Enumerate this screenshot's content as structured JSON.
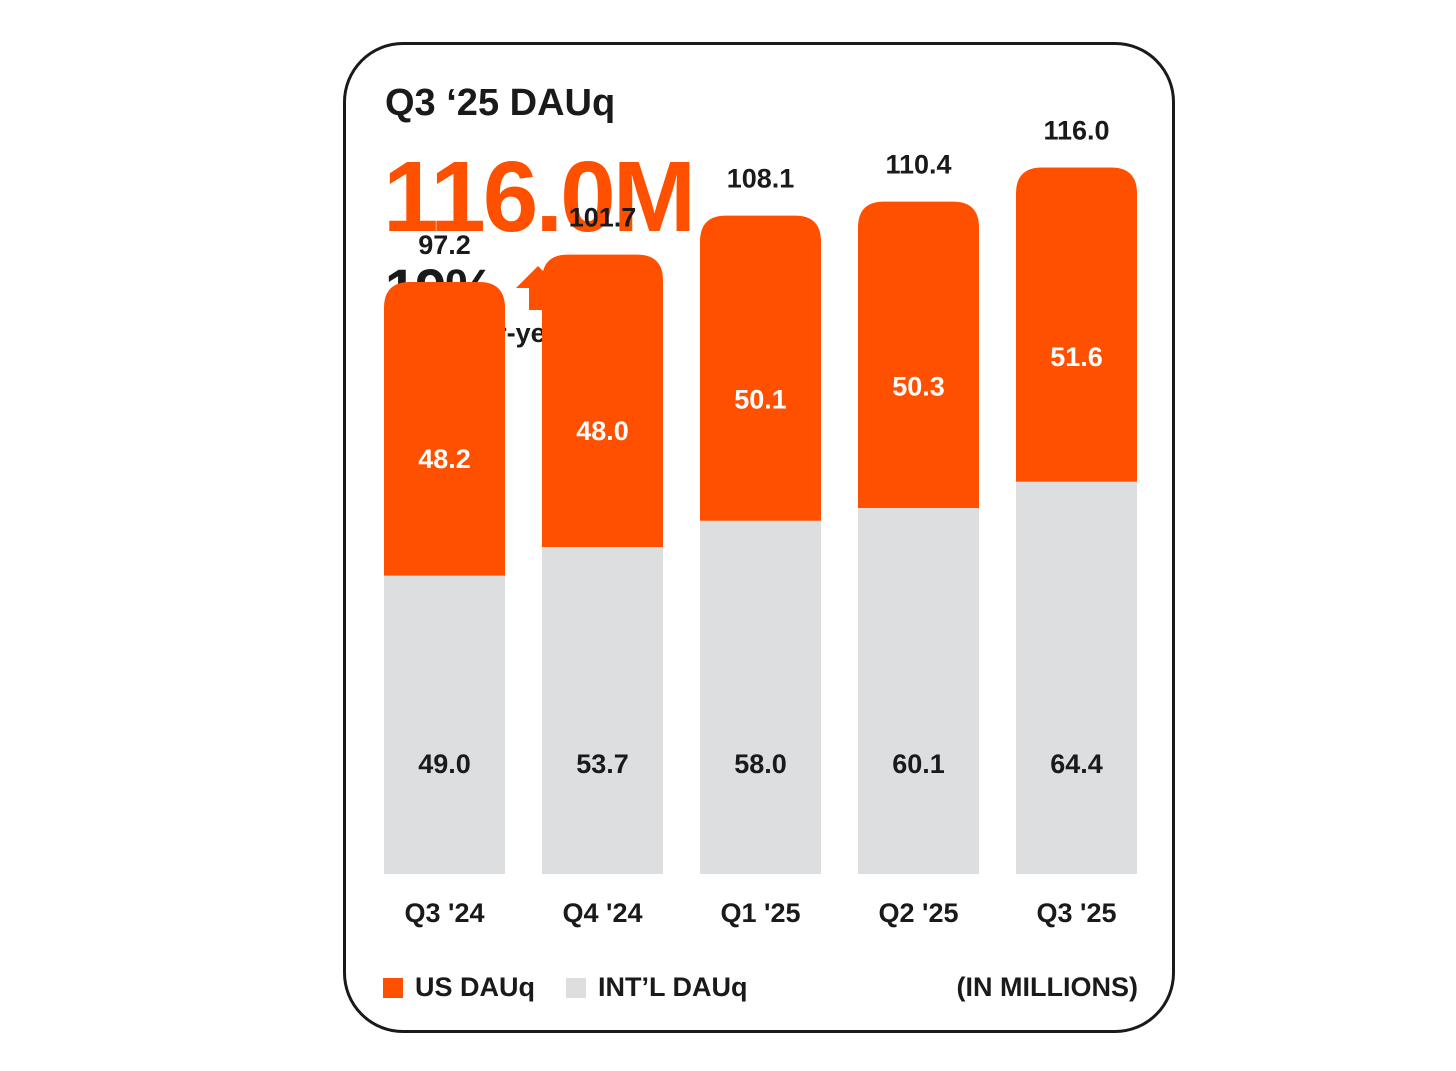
{
  "header": {
    "title": "Q3 ‘25 DAUq",
    "headline_value": "116.0M",
    "yoy_value": "19%",
    "yoy_label": "year-over-year",
    "yoy_icon": "arrow-up-icon"
  },
  "colors": {
    "accent": "#ff5000",
    "us": "#ff5000",
    "intl": "#dcdee0",
    "text": "#1a1a1a"
  },
  "legend": {
    "us_label": "US DAUq",
    "intl_label": "INT’L DAUq",
    "unit_label": "(IN MILLIONS)"
  },
  "chart_data": {
    "type": "bar",
    "stacked": true,
    "categories": [
      "Q3 '24",
      "Q4 '24",
      "Q1 '25",
      "Q2 '25",
      "Q3 '25"
    ],
    "totals": [
      "97.2",
      "101.7",
      "108.1",
      "110.4",
      "116.0"
    ],
    "series": [
      {
        "name": "INT’L DAUq",
        "key": "intl",
        "values": [
          49.0,
          53.7,
          58.0,
          60.1,
          64.4
        ],
        "labels": [
          "49.0",
          "53.7",
          "58.0",
          "60.1",
          "64.4"
        ]
      },
      {
        "name": "US DAUq",
        "key": "us",
        "values": [
          48.2,
          48.0,
          50.1,
          50.3,
          51.6
        ],
        "labels": [
          "48.2",
          "48.0",
          "50.1",
          "50.3",
          "51.6"
        ]
      }
    ],
    "title": "Q3 ‘25 DAUq",
    "xlabel": "",
    "ylabel": "",
    "units": "(IN MILLIONS)",
    "grid": false,
    "legend_position": "bottom"
  }
}
